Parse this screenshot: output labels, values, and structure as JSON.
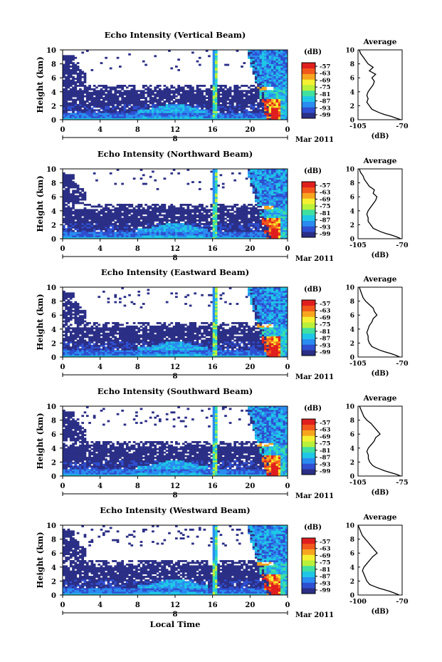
{
  "colors": {
    "colormap": [
      "#2b2f86",
      "#2f4fd0",
      "#2a8cf0",
      "#1fc7e6",
      "#3fe0a0",
      "#b8f03a",
      "#f5f030",
      "#f7a51e",
      "#f2581c",
      "#e01e1e"
    ]
  },
  "figure": {
    "xlabel": "Local Time",
    "date_suffix": "Mar 2011",
    "date_tick": "8"
  },
  "chart_data": [
    {
      "type": "heatmap",
      "title": "Echo Intensity (Vertical Beam)",
      "ylabel": "Height (km)",
      "xlim": [
        0,
        24
      ],
      "ylim": [
        0,
        10
      ],
      "xticks": [
        "0",
        "4",
        "8",
        "12",
        "16",
        "20",
        "0"
      ],
      "yticks": [
        "0",
        "2",
        "4",
        "6",
        "8",
        "10"
      ],
      "colorbar": {
        "label": "(dB)",
        "ticks": [
          "-57",
          "-63",
          "-69",
          "-75",
          "-81",
          "-87",
          "-93",
          "-99"
        ]
      },
      "average": {
        "title": "Average",
        "xlabel": "(dB)",
        "xlim": [
          -105,
          -70
        ],
        "xticks": [
          "-105",
          "-70"
        ],
        "height_km": [
          0,
          0.25,
          0.5,
          0.75,
          1,
          1.25,
          1.5,
          2,
          2.5,
          3,
          3.5,
          4,
          4.5,
          5,
          5.5,
          6,
          6.5,
          7,
          7.5,
          8,
          8.5,
          9,
          9.5,
          10
        ],
        "db": [
          -71,
          -75,
          -79,
          -84,
          -88,
          -91,
          -94,
          -96,
          -98,
          -97,
          -98,
          -97,
          -95,
          -93,
          -92,
          -94,
          -91,
          -96,
          -93,
          -97,
          -99,
          -101,
          -103,
          -104
        ]
      }
    },
    {
      "type": "heatmap",
      "title": "Echo Intensity (Northward Beam)",
      "ylabel": "Height (km)",
      "xlim": [
        0,
        24
      ],
      "ylim": [
        0,
        10
      ],
      "xticks": [
        "0",
        "4",
        "8",
        "12",
        "16",
        "20",
        "0"
      ],
      "yticks": [
        "0",
        "2",
        "4",
        "6",
        "8",
        "10"
      ],
      "colorbar": {
        "label": "(dB)",
        "ticks": [
          "-57",
          "-63",
          "-69",
          "-75",
          "-81",
          "-87",
          "-93",
          "-99"
        ]
      },
      "average": {
        "title": "Average",
        "xlabel": "(dB)",
        "xlim": [
          -105,
          -70
        ],
        "xticks": [
          "-105",
          "-70"
        ],
        "height_km": [
          0,
          0.25,
          0.5,
          0.75,
          1,
          1.25,
          1.5,
          2,
          2.5,
          3,
          3.5,
          4,
          4.5,
          5,
          5.5,
          6,
          6.5,
          7,
          7.5,
          8,
          8.5,
          9,
          9.5,
          10
        ],
        "db": [
          -71,
          -74,
          -78,
          -83,
          -87,
          -90,
          -93,
          -95,
          -97,
          -97,
          -98,
          -97,
          -95,
          -93,
          -91,
          -90,
          -93,
          -92,
          -96,
          -98,
          -100,
          -101,
          -103,
          -104
        ]
      }
    },
    {
      "type": "heatmap",
      "title": "Echo Intensity (Eastward Beam)",
      "ylabel": "Height (km)",
      "xlim": [
        0,
        24
      ],
      "ylim": [
        0,
        10
      ],
      "xticks": [
        "0",
        "4",
        "8",
        "12",
        "16",
        "20",
        "0"
      ],
      "yticks": [
        "0",
        "2",
        "4",
        "6",
        "8",
        "10"
      ],
      "colorbar": {
        "label": "(dB)",
        "ticks": [
          "-57",
          "-63",
          "-69",
          "-75",
          "-81",
          "-87",
          "-93",
          "-99"
        ]
      },
      "average": {
        "title": "Average",
        "xlabel": "(dB)",
        "xlim": [
          -105,
          -70
        ],
        "xticks": [
          "-105",
          "-70"
        ],
        "height_km": [
          0,
          0.25,
          0.5,
          0.75,
          1,
          1.25,
          1.5,
          2,
          2.5,
          3,
          3.5,
          4,
          4.5,
          5,
          5.5,
          6,
          6.5,
          7,
          7.5,
          8,
          8.5,
          9,
          9.5,
          10
        ],
        "db": [
          -72,
          -75,
          -79,
          -84,
          -88,
          -91,
          -94,
          -96,
          -97,
          -97,
          -98,
          -97,
          -96,
          -94,
          -93,
          -90,
          -92,
          -93,
          -96,
          -99,
          -101,
          -102,
          -103,
          -104
        ]
      }
    },
    {
      "type": "heatmap",
      "title": "Echo Intensity (Southward Beam)",
      "ylabel": "Height (km)",
      "xlim": [
        0,
        24
      ],
      "ylim": [
        0,
        10
      ],
      "xticks": [
        "0",
        "4",
        "8",
        "12",
        "16",
        "20",
        "0"
      ],
      "yticks": [
        "0",
        "2",
        "4",
        "6",
        "8",
        "10"
      ],
      "colorbar": {
        "label": "(dB)",
        "ticks": [
          "-57",
          "-63",
          "-69",
          "-75",
          "-81",
          "-87",
          "-93",
          "-99"
        ]
      },
      "average": {
        "title": "Average",
        "xlabel": "(dB)",
        "xlim": [
          -105,
          -75
        ],
        "xticks": [
          "-105",
          "-75"
        ],
        "height_km": [
          0,
          0.25,
          0.5,
          0.75,
          1,
          1.25,
          1.5,
          2,
          2.5,
          3,
          3.5,
          4,
          4.5,
          5,
          5.5,
          6,
          6.5,
          7,
          7.5,
          8,
          8.5,
          9,
          9.5,
          10
        ],
        "db": [
          -76,
          -79,
          -83,
          -87,
          -90,
          -93,
          -95,
          -97,
          -98,
          -98,
          -99,
          -98,
          -96,
          -94,
          -93,
          -90,
          -92,
          -94,
          -96,
          -99,
          -101,
          -102,
          -103,
          -104
        ]
      }
    },
    {
      "type": "heatmap",
      "title": "Echo Intensity (Westward Beam)",
      "ylabel": "Height (km)",
      "xlim": [
        0,
        24
      ],
      "ylim": [
        0,
        10
      ],
      "xticks": [
        "0",
        "4",
        "8",
        "12",
        "16",
        "20",
        "0"
      ],
      "yticks": [
        "0",
        "2",
        "4",
        "6",
        "8",
        "10"
      ],
      "colorbar": {
        "label": "(dB)",
        "ticks": [
          "-57",
          "-63",
          "-69",
          "-75",
          "-81",
          "-87",
          "-93",
          "-99"
        ]
      },
      "average": {
        "title": "Average",
        "xlabel": "(dB)",
        "xlim": [
          -100,
          -70
        ],
        "xticks": [
          "-100",
          "-70"
        ],
        "height_km": [
          0,
          0.25,
          0.5,
          0.75,
          1,
          1.25,
          1.5,
          2,
          2.5,
          3,
          3.5,
          4,
          4.5,
          5,
          5.5,
          6,
          6.5,
          7,
          7.5,
          8,
          8.5,
          9,
          9.5,
          10
        ],
        "db": [
          -72,
          -75,
          -78,
          -82,
          -86,
          -89,
          -92,
          -94,
          -95,
          -96,
          -97,
          -96,
          -94,
          -92,
          -90,
          -87,
          -89,
          -91,
          -93,
          -95,
          -97,
          -98,
          -99,
          -100
        ]
      }
    }
  ]
}
